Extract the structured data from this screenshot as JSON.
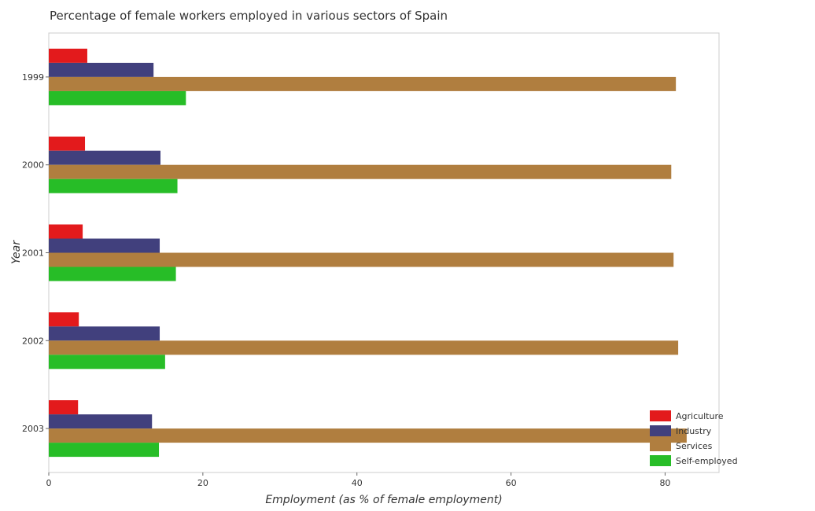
{
  "chart_data": {
    "type": "bar",
    "orientation": "horizontal",
    "title": "Percentage of female workers employed in various sectors of Spain",
    "xlabel": "Employment (as % of female employment)",
    "ylabel": "Year",
    "xlim": [
      0,
      87
    ],
    "xticks": [
      0,
      20,
      40,
      60,
      80
    ],
    "categories": [
      "1999",
      "2000",
      "2001",
      "2002",
      "2003"
    ],
    "series": [
      {
        "name": "Agriculture",
        "color": "#e31a1c",
        "values": [
          5.0,
          4.7,
          4.4,
          3.9,
          3.8
        ]
      },
      {
        "name": "Industry",
        "color": "#41407d",
        "values": [
          13.6,
          14.5,
          14.4,
          14.4,
          13.4
        ]
      },
      {
        "name": "Services",
        "color": "#b07e3f",
        "values": [
          81.4,
          80.8,
          81.1,
          81.7,
          82.8
        ]
      },
      {
        "name": "Self-employed",
        "color": "#27bd27",
        "values": [
          17.8,
          16.7,
          16.5,
          15.1,
          14.3
        ]
      }
    ],
    "grid": false,
    "legend_position": "bottom-right"
  }
}
